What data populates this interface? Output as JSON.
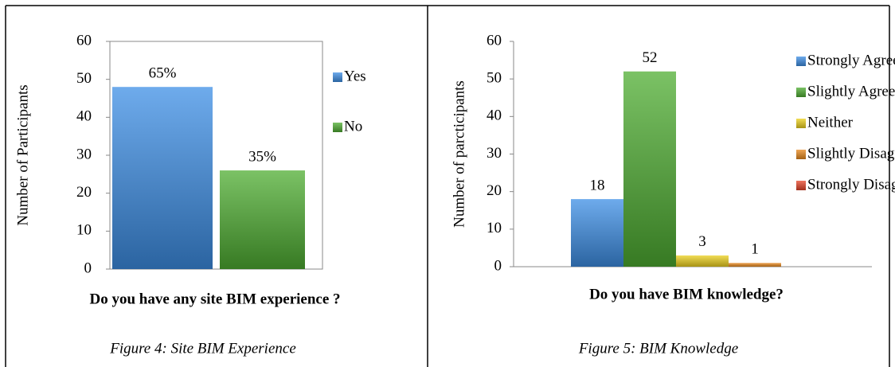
{
  "chart_data": [
    {
      "type": "bar",
      "ylabel": "Number of Participants",
      "xlabel": "Do you have any site BIM experience ?",
      "caption": "Figure 4: Site BIM  Experience",
      "series": [
        {
          "name": "Yes",
          "color": "#3d8fe6",
          "values": [
            48
          ]
        },
        {
          "name": "No",
          "color": "#4fae32",
          "values": [
            26
          ]
        }
      ],
      "annotations": [
        "65%",
        "35%"
      ],
      "ylim": [
        0,
        60
      ],
      "yticks": [
        0,
        10,
        20,
        30,
        40,
        50,
        60
      ],
      "legend": "right"
    },
    {
      "type": "bar",
      "ylabel": "Number of parcticipants",
      "xlabel": "Do you have BIM knowledge?",
      "caption": "Figure 5: BIM Knowledge",
      "series": [
        {
          "name": "Strongly Agree",
          "color": "#3d8fe6",
          "values": [
            18
          ]
        },
        {
          "name": "Slightly Agree",
          "color": "#4fae32",
          "values": [
            52
          ]
        },
        {
          "name": "Neither",
          "color": "#eed21e",
          "values": [
            3
          ]
        },
        {
          "name": "Slightly Disagree",
          "color": "#ea8a1e",
          "values": [
            1
          ]
        },
        {
          "name": "Strongly Disagree",
          "color": "#e8452a",
          "values": [
            0
          ]
        }
      ],
      "ylim": [
        0,
        60
      ],
      "yticks": [
        0,
        10,
        20,
        30,
        40,
        50,
        60
      ],
      "legend": "right"
    }
  ]
}
